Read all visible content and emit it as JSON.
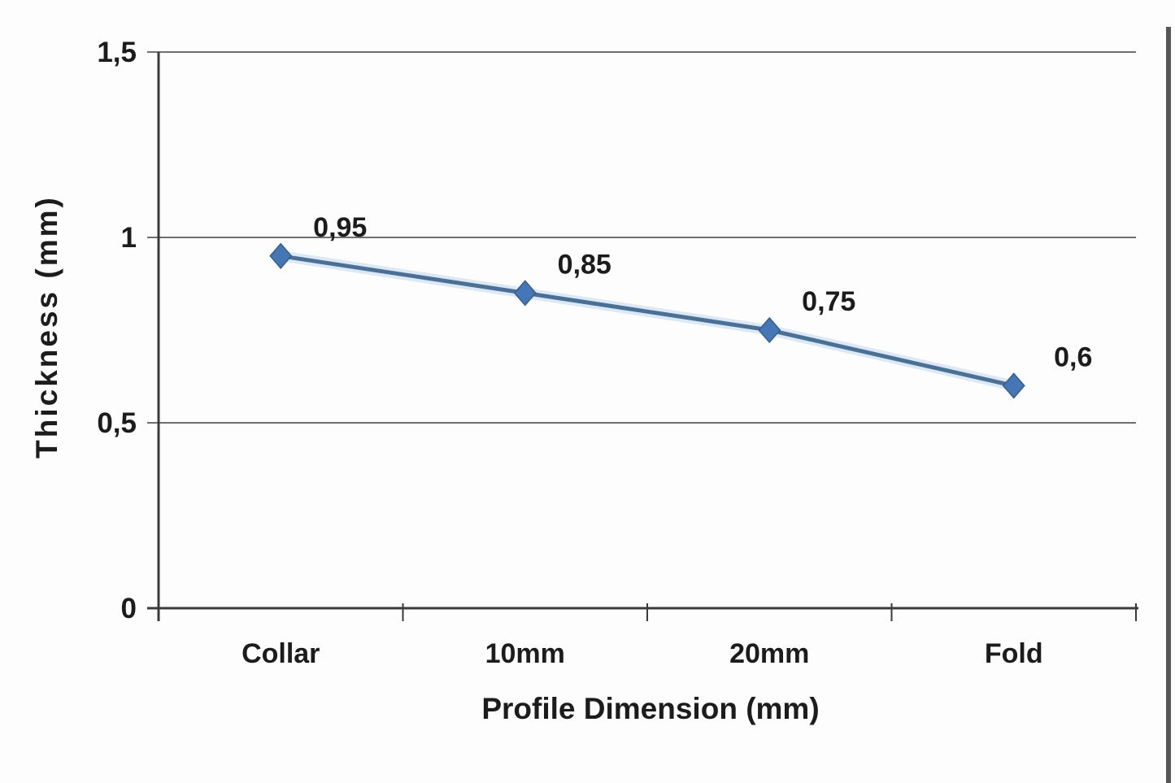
{
  "chart_data": {
    "type": "line",
    "title": "",
    "categories": [
      "Collar",
      "10mm",
      "20mm",
      "Fold"
    ],
    "series": [
      {
        "name": "Thickness",
        "values": [
          0.95,
          0.85,
          0.75,
          0.6
        ],
        "point_labels": [
          "0,95",
          "0,85",
          "0,75",
          "0,6"
        ]
      }
    ],
    "xlabel": "Profile Dimension (mm)",
    "ylabel": "Thickness (mm)",
    "ylim": [
      0,
      1.5
    ],
    "yticks": [
      {
        "value": 0,
        "label": "0"
      },
      {
        "value": 0.5,
        "label": "0,5"
      },
      {
        "value": 1,
        "label": "1"
      },
      {
        "value": 1.5,
        "label": "1,5"
      }
    ],
    "grid": true,
    "legend": false,
    "decimal_separator": ",",
    "colors": {
      "background": "#fdfdfd",
      "grid": "#6f6f6f",
      "axis": "#3b3b3b",
      "text": "#1c1c1c",
      "line": "#4b7096",
      "line_halo": "#dce9f5",
      "marker": "#4576b5",
      "marker_stroke": "#35608c",
      "scan_artifact": "#3a3a3a"
    }
  }
}
